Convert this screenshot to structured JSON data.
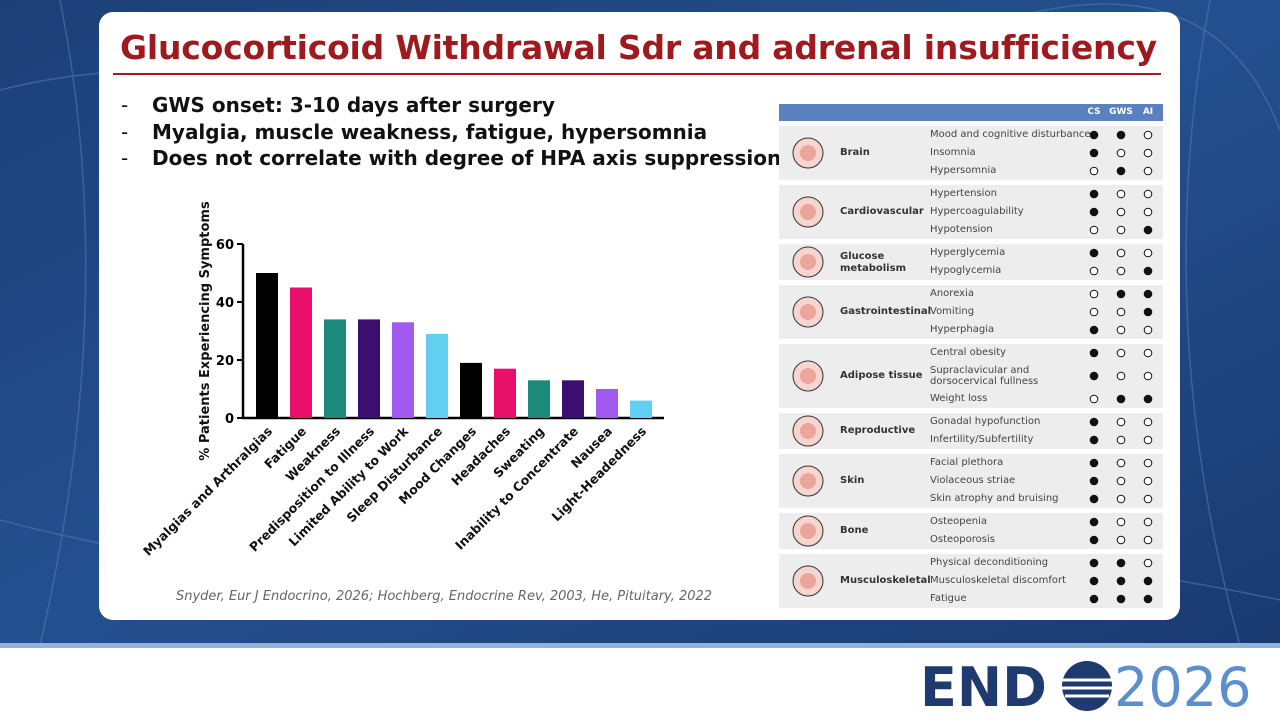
{
  "title": "Glucocorticoid Withdrawal Sdr and adrenal insufficiency",
  "bullets": [
    "GWS onset: 3-10 days after surgery",
    "Myalgia, muscle weakness, fatigue, hypersomnia",
    "Does not correlate with degree of HPA axis suppression"
  ],
  "citation": "Snyder, Eur J Endocrino, 2026; Hochberg, Endocrine Rev, 2003, He, Pituitary, 2022",
  "chart_data": {
    "type": "bar",
    "y_label": "% Patients Experiencing Symptoms",
    "categories": [
      "Myalgias and Arthralgias",
      "Fatigue",
      "Weakness",
      "Predisposition to Illness",
      "Limited Ability to Work",
      "Sleep Disturbance",
      "Mood Changes",
      "Headaches",
      "Sweating",
      "Inability to Concentrate",
      "Nausea",
      "Light-Headedness"
    ],
    "values": [
      50,
      45,
      34,
      34,
      33,
      29,
      19,
      17,
      13,
      13,
      10,
      6
    ],
    "colors": [
      "#000000",
      "#e8106a",
      "#1b8a7a",
      "#3b0f6e",
      "#a259f0",
      "#63cff0",
      "#000000",
      "#e8106a",
      "#1b8a7a",
      "#3b0f6e",
      "#a259f0",
      "#63cff0"
    ],
    "ylim": [
      0,
      60
    ],
    "yticks": [
      0,
      20,
      40,
      60
    ]
  },
  "table": {
    "columns": [
      "CS",
      "GWS",
      "AI"
    ],
    "groups": [
      {
        "name": "Brain",
        "rows": [
          {
            "label": "Mood and cognitive disturbance",
            "marks": [
              true,
              true,
              false
            ]
          },
          {
            "label": "Insomnia",
            "marks": [
              true,
              false,
              false
            ]
          },
          {
            "label": "Hypersomnia",
            "marks": [
              false,
              true,
              false
            ]
          }
        ]
      },
      {
        "name": "Cardiovascular",
        "rows": [
          {
            "label": "Hypertension",
            "marks": [
              true,
              false,
              false
            ]
          },
          {
            "label": "Hypercoagulability",
            "marks": [
              true,
              false,
              false
            ]
          },
          {
            "label": "Hypotension",
            "marks": [
              false,
              false,
              true
            ]
          }
        ]
      },
      {
        "name": "Glucose\nmetabolism",
        "rows": [
          {
            "label": "Hyperglycemia",
            "marks": [
              true,
              false,
              false
            ]
          },
          {
            "label": "Hypoglycemia",
            "marks": [
              false,
              false,
              true
            ]
          }
        ]
      },
      {
        "name": "Gastrointestinal",
        "rows": [
          {
            "label": "Anorexia",
            "marks": [
              false,
              true,
              true
            ]
          },
          {
            "label": "Vomiting",
            "marks": [
              false,
              false,
              true
            ]
          },
          {
            "label": "Hyperphagia",
            "marks": [
              true,
              false,
              false
            ]
          }
        ]
      },
      {
        "name": "Adipose tissue",
        "rows": [
          {
            "label": "Central obesity",
            "marks": [
              true,
              false,
              false
            ]
          },
          {
            "label": "Supraclavicular and\ndorsocervical fullness",
            "marks": [
              true,
              false,
              false
            ]
          },
          {
            "label": "Weight loss",
            "marks": [
              false,
              true,
              true
            ]
          }
        ]
      },
      {
        "name": "Reproductive",
        "rows": [
          {
            "label": "Gonadal hypofunction",
            "marks": [
              true,
              false,
              false
            ]
          },
          {
            "label": "Infertility/Subfertility",
            "marks": [
              true,
              false,
              false
            ]
          }
        ]
      },
      {
        "name": "Skin",
        "rows": [
          {
            "label": "Facial plethora",
            "marks": [
              true,
              false,
              false
            ]
          },
          {
            "label": "Violaceous striae",
            "marks": [
              true,
              false,
              false
            ]
          },
          {
            "label": "Skin atrophy and bruising",
            "marks": [
              true,
              false,
              false
            ]
          }
        ]
      },
      {
        "name": "Bone",
        "rows": [
          {
            "label": "Osteopenia",
            "marks": [
              true,
              false,
              false
            ]
          },
          {
            "label": "Osteoporosis",
            "marks": [
              true,
              false,
              false
            ]
          }
        ]
      },
      {
        "name": "Musculoskeletal",
        "rows": [
          {
            "label": "Physical deconditioning",
            "marks": [
              true,
              true,
              false
            ]
          },
          {
            "label": "Musculoskeletal discomfort",
            "marks": [
              true,
              true,
              true
            ]
          },
          {
            "label": "Fatigue",
            "marks": [
              true,
              true,
              true
            ]
          }
        ]
      }
    ]
  },
  "logo": {
    "brand": "END",
    "year": "2026"
  }
}
